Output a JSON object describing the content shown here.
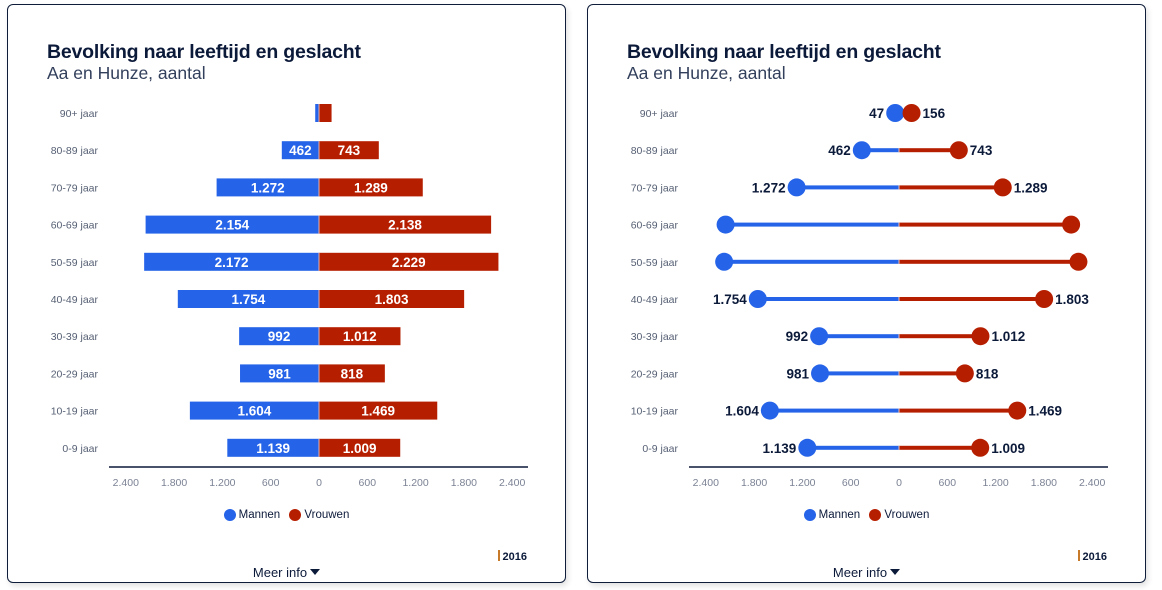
{
  "colors": {
    "mannen": "#2563e8",
    "vrouwen": "#b61e00",
    "axis": "#0c1a3a"
  },
  "cards": [
    {
      "title": "Bevolking naar leeftijd en geslacht",
      "subtitle": "Aa en Hunze, aantal",
      "legend": [
        {
          "label": "Mannen",
          "color": "#2563e8"
        },
        {
          "label": "Vrouwen",
          "color": "#b61e00"
        }
      ],
      "year": "2016",
      "meer_info": "Meer info"
    },
    {
      "title": "Bevolking naar leeftijd en geslacht",
      "subtitle": "Aa en Hunze, aantal",
      "legend": [
        {
          "label": "Mannen",
          "color": "#2563e8"
        },
        {
          "label": "Vrouwen",
          "color": "#b61e00"
        }
      ],
      "year": "2016",
      "meer_info": "Meer info"
    }
  ],
  "chart_data": [
    {
      "type": "bar",
      "orientation": "horizontal-diverging",
      "title": "Bevolking naar leeftijd en geslacht",
      "subtitle": "Aa en Hunze, aantal",
      "categories": [
        "90+ jaar",
        "80-89 jaar",
        "70-79 jaar",
        "60-69 jaar",
        "50-59 jaar",
        "40-49 jaar",
        "30-39 jaar",
        "20-29 jaar",
        "10-19 jaar",
        "0-9 jaar"
      ],
      "series": [
        {
          "name": "Mannen",
          "values": [
            47,
            462,
            1272,
            2154,
            2172,
            1754,
            992,
            981,
            1604,
            1139
          ],
          "labels": [
            "",
            "462",
            "1.272",
            "2.154",
            "2.172",
            "1.754",
            "992",
            "981",
            "1.604",
            "1.139"
          ]
        },
        {
          "name": "Vrouwen",
          "values": [
            156,
            743,
            1289,
            2138,
            2229,
            1803,
            1012,
            818,
            1469,
            1009
          ],
          "labels": [
            "",
            "743",
            "1.289",
            "2.138",
            "2.229",
            "1.803",
            "1.012",
            "818",
            "1.469",
            "1.009"
          ]
        }
      ],
      "xticks": [
        "2.400",
        "1.800",
        "1.200",
        "600",
        "0",
        "600",
        "1.200",
        "1.800",
        "2.400"
      ],
      "xtick_values": [
        -2400,
        -1800,
        -1200,
        -600,
        0,
        600,
        1200,
        1800,
        2400
      ],
      "xlim": [
        -2600,
        2600
      ],
      "legend_position": "bottom-center",
      "grid": false
    },
    {
      "type": "scatter",
      "variant": "diverging-lollipop",
      "title": "Bevolking naar leeftijd en geslacht",
      "subtitle": "Aa en Hunze, aantal",
      "categories": [
        "90+ jaar",
        "80-89 jaar",
        "70-79 jaar",
        "60-69 jaar",
        "50-59 jaar",
        "40-49 jaar",
        "30-39 jaar",
        "20-29 jaar",
        "10-19 jaar",
        "0-9 jaar"
      ],
      "series": [
        {
          "name": "Mannen",
          "values": [
            47,
            462,
            1272,
            2154,
            2172,
            1754,
            992,
            981,
            1604,
            1139
          ],
          "labels": [
            "47",
            "462",
            "1.272",
            "",
            "",
            "1.754",
            "992",
            "981",
            "1.604",
            "1.139"
          ]
        },
        {
          "name": "Vrouwen",
          "values": [
            156,
            743,
            1289,
            2138,
            2229,
            1803,
            1012,
            818,
            1469,
            1009
          ],
          "labels": [
            "156",
            "743",
            "1.289",
            "",
            "",
            "1.803",
            "1.012",
            "818",
            "1.469",
            "1.009"
          ]
        }
      ],
      "xticks": [
        "2.400",
        "1.800",
        "1.200",
        "600",
        "0",
        "600",
        "1.200",
        "1.800",
        "2.400"
      ],
      "xtick_values": [
        -2400,
        -1800,
        -1200,
        -600,
        0,
        600,
        1200,
        1800,
        2400
      ],
      "xlim": [
        -2600,
        2600
      ],
      "legend_position": "bottom-center",
      "grid": false
    }
  ]
}
